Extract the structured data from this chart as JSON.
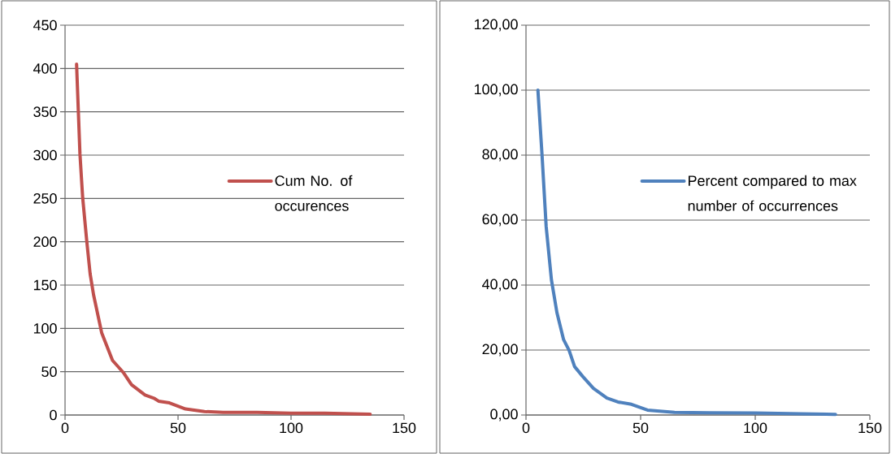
{
  "chart_data": [
    {
      "type": "line",
      "x": [
        5.1,
        6.6,
        7.8,
        9.6,
        11.1,
        12.6,
        16.2,
        21,
        25.8,
        29.4,
        35.4,
        39.6,
        41.4,
        46.2,
        53.3,
        61.7,
        70,
        85,
        100,
        115,
        135
      ],
      "series": [
        {
          "name": "Cum No. of occurences",
          "color": "#c0504d",
          "values": [
            405,
            301,
            251,
            201,
            163,
            139,
            95,
            63,
            49,
            35,
            23,
            19,
            16,
            14,
            7,
            4,
            3,
            3,
            2,
            2,
            1
          ]
        }
      ],
      "xlim": [
        0,
        150
      ],
      "xticks": [
        0,
        50,
        100,
        150
      ],
      "ylim": [
        0,
        450
      ],
      "yticks": [
        0,
        50,
        100,
        150,
        200,
        250,
        300,
        350,
        400,
        450
      ],
      "grid": "y",
      "legend": "right"
    },
    {
      "type": "line",
      "x": [
        5.2,
        7.0,
        8.8,
        11.1,
        13.5,
        16.4,
        18.8,
        21.2,
        24.7,
        29.4,
        35.3,
        40.1,
        46,
        53,
        64.8,
        80,
        100,
        120,
        135
      ],
      "series": [
        {
          "name": "Percent compared to max number of occurrences",
          "color": "#4f81bd",
          "values": [
            100,
            80,
            58,
            41.6,
            31.5,
            23.2,
            19.9,
            14.9,
            11.9,
            8.2,
            5.2,
            4.0,
            3.3,
            1.5,
            0.8,
            0.7,
            0.6,
            0.4,
            0.2
          ]
        }
      ],
      "xlim": [
        0,
        150
      ],
      "xticks": [
        0,
        50,
        100,
        150
      ],
      "ylim": [
        0,
        120
      ],
      "yticks": [
        {
          "value": 0,
          "label": "0,00"
        },
        {
          "value": 20,
          "label": "20,00"
        },
        {
          "value": 40,
          "label": "40,00"
        },
        {
          "value": 60,
          "label": "60,00"
        },
        {
          "value": 80,
          "label": "80,00"
        },
        {
          "value": 100,
          "label": "100,00"
        },
        {
          "value": 120,
          "label": "120,00"
        }
      ],
      "grid": "y",
      "legend": "right"
    }
  ]
}
